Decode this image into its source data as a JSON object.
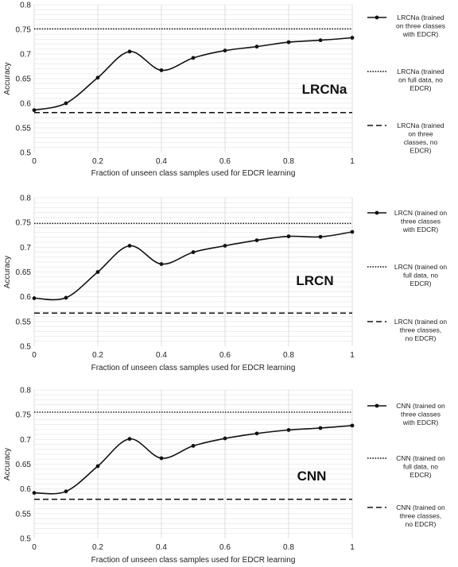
{
  "chart_data": [
    {
      "type": "line",
      "annotation": "LRCNa",
      "xlabel": "Fraction of unseen class samples used for EDCR learning",
      "ylabel": "Accuracy",
      "xlim": [
        0,
        1
      ],
      "ylim": [
        0.5,
        0.8
      ],
      "xticks": [
        "0",
        "0.2",
        "0.4",
        "0.6",
        "0.8",
        "1"
      ],
      "yticks": [
        "0.5",
        "0.55",
        "0.6",
        "0.65",
        "0.7",
        "0.75",
        "0.8"
      ],
      "grid": "vertical major, horizontal minor",
      "legend_position": "right",
      "series": [
        {
          "name": "LRCNa (trained on three classes with EDCR)",
          "style": "solid-markers",
          "x": [
            0,
            0.1,
            0.2,
            0.3,
            0.4,
            0.5,
            0.6,
            0.7,
            0.8,
            0.9,
            1.0
          ],
          "y": [
            0.586,
            0.6,
            0.652,
            0.705,
            0.667,
            0.692,
            0.707,
            0.715,
            0.724,
            0.728,
            0.733
          ]
        },
        {
          "name": "LRCNa (trained on full data, no EDCR)",
          "style": "dotted",
          "x": [
            0,
            1
          ],
          "y": [
            0.751,
            0.751
          ]
        },
        {
          "name": "LRCNa (trained on three classes, no EDCR)",
          "style": "dashed",
          "x": [
            0,
            1
          ],
          "y": [
            0.581,
            0.581
          ]
        }
      ]
    },
    {
      "type": "line",
      "annotation": "LRCN",
      "xlabel": "Fraction of unseen class samples used for EDCR learning",
      "ylabel": "Accuracy",
      "xlim": [
        0,
        1
      ],
      "ylim": [
        0.5,
        0.8
      ],
      "xticks": [
        "0",
        "0.2",
        "0.4",
        "0.6",
        "0.8",
        "1"
      ],
      "yticks": [
        "0.5",
        "0.55",
        "0.6",
        "0.65",
        "0.7",
        "0.75",
        "0.8"
      ],
      "grid": "vertical major, horizontal minor",
      "legend_position": "right",
      "series": [
        {
          "name": "LRCN (trained on three classes with EDCR)",
          "style": "solid-markers",
          "x": [
            0,
            0.1,
            0.2,
            0.3,
            0.4,
            0.5,
            0.6,
            0.7,
            0.8,
            0.9,
            1.0
          ],
          "y": [
            0.597,
            0.598,
            0.65,
            0.703,
            0.666,
            0.69,
            0.703,
            0.714,
            0.722,
            0.721,
            0.731
          ]
        },
        {
          "name": "LRCN (trained on full data, no EDCR)",
          "style": "dotted",
          "x": [
            0,
            1
          ],
          "y": [
            0.748,
            0.748
          ]
        },
        {
          "name": "LRCN (trained on three classes, no EDCR)",
          "style": "dashed",
          "x": [
            0,
            1
          ],
          "y": [
            0.567,
            0.567
          ]
        }
      ]
    },
    {
      "type": "line",
      "annotation": "CNN",
      "xlabel": "Fraction of unseen class samples used for EDCR learning",
      "ylabel": "Accuracy",
      "xlim": [
        0,
        1
      ],
      "ylim": [
        0.5,
        0.8
      ],
      "xticks": [
        "0",
        "0.2",
        "0.4",
        "0.6",
        "0.8",
        "1"
      ],
      "yticks": [
        "0.5",
        "0.55",
        "0.6",
        "0.65",
        "0.7",
        "0.75",
        "0.8"
      ],
      "grid": "vertical major, horizontal minor",
      "legend_position": "right",
      "series": [
        {
          "name": "CNN  (trained on three classes with EDCR)",
          "style": "solid-markers",
          "x": [
            0,
            0.1,
            0.2,
            0.3,
            0.4,
            0.5,
            0.6,
            0.7,
            0.8,
            0.9,
            1.0
          ],
          "y": [
            0.592,
            0.595,
            0.646,
            0.701,
            0.662,
            0.687,
            0.702,
            0.712,
            0.719,
            0.723,
            0.728
          ]
        },
        {
          "name": "CNN (trained on full data, no EDCR)",
          "style": "dotted",
          "x": [
            0,
            1
          ],
          "y": [
            0.755,
            0.755
          ]
        },
        {
          "name": "CNN (trained on three classes, no EDCR)",
          "style": "dashed",
          "x": [
            0,
            1
          ],
          "y": [
            0.579,
            0.579
          ]
        }
      ]
    }
  ]
}
